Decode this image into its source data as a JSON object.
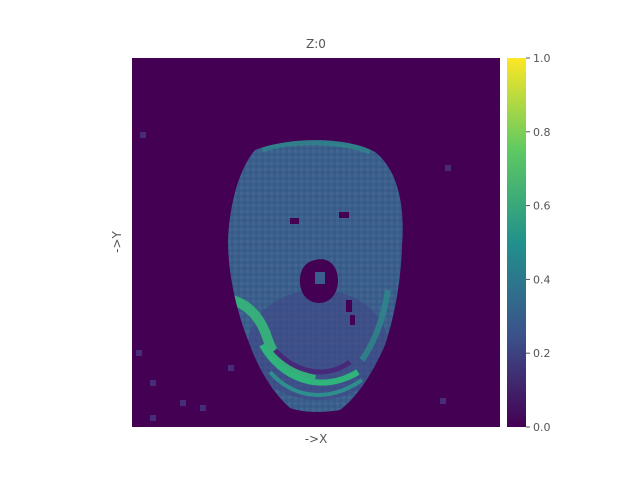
{
  "chart_data": {
    "type": "heatmap",
    "title": "Z:0",
    "xlabel": "->X",
    "ylabel": "->Y",
    "colormap": "viridis",
    "colorbar": {
      "range": [
        0.0,
        1.0
      ],
      "ticks": [
        "0.0",
        "0.2",
        "0.4",
        "0.6",
        "0.8",
        "1.0"
      ],
      "colors": [
        "#440154",
        "#3b528b",
        "#21918c",
        "#5ec962",
        "#fde725"
      ]
    },
    "grid": false,
    "regions": [
      {
        "name": "background",
        "value": 0.0
      },
      {
        "name": "head-tissue",
        "value": 0.38
      },
      {
        "name": "jaw-bright-band",
        "value": 0.6
      },
      {
        "name": "mouth-interior",
        "value": 0.28
      },
      {
        "name": "eyes",
        "value": 0.0
      },
      {
        "name": "nose-cavity",
        "value": 0.0
      }
    ]
  }
}
